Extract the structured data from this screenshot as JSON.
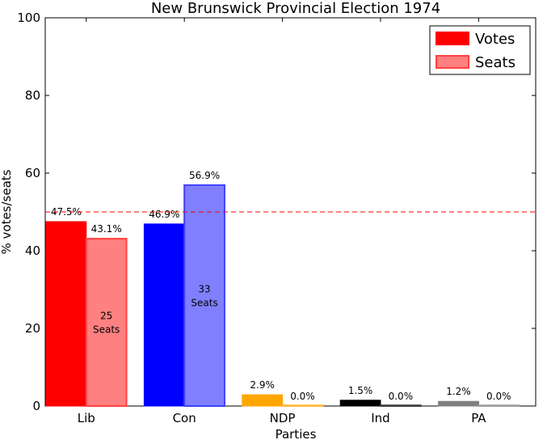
{
  "chart_data": {
    "type": "bar",
    "title": "New Brunswick Provincial Election 1974",
    "xlabel": "Parties",
    "ylabel": "% votes/seats",
    "ylim": [
      0,
      100
    ],
    "yticks": [
      0,
      20,
      40,
      60,
      80,
      100
    ],
    "categories": [
      "Lib",
      "Con",
      "NDP",
      "Ind",
      "PA"
    ],
    "series": [
      {
        "name": "Votes",
        "values": [
          47.5,
          46.9,
          2.9,
          1.5,
          1.2
        ],
        "labels": [
          "47.5%",
          "46.9%",
          "2.9%",
          "1.5%",
          "1.2%"
        ],
        "colors": [
          "#ff0000",
          "#0000ff",
          "#ffa500",
          "#000000",
          "#808080"
        ]
      },
      {
        "name": "Seats",
        "values": [
          43.1,
          56.9,
          0.0,
          0.0,
          0.0
        ],
        "labels": [
          "43.1%",
          "56.9%",
          "0.0%",
          "0.0%",
          "0.0%"
        ],
        "seat_labels": [
          "25 Seats",
          "33 Seats",
          "",
          "",
          ""
        ],
        "colors": [
          "#ff8080",
          "#8080ff",
          "#ffd280",
          "#808080",
          "#c0c0c0"
        ],
        "edge_colors": [
          "#ff4040",
          "#4040ff",
          "#ffbb40",
          "#404040",
          "#a0a0a0"
        ]
      }
    ],
    "reference_line": {
      "value": 50,
      "color": "#ff0000",
      "style": "dashed"
    },
    "legend": {
      "position": "top-right",
      "entries": [
        "Votes",
        "Seats"
      ]
    }
  }
}
